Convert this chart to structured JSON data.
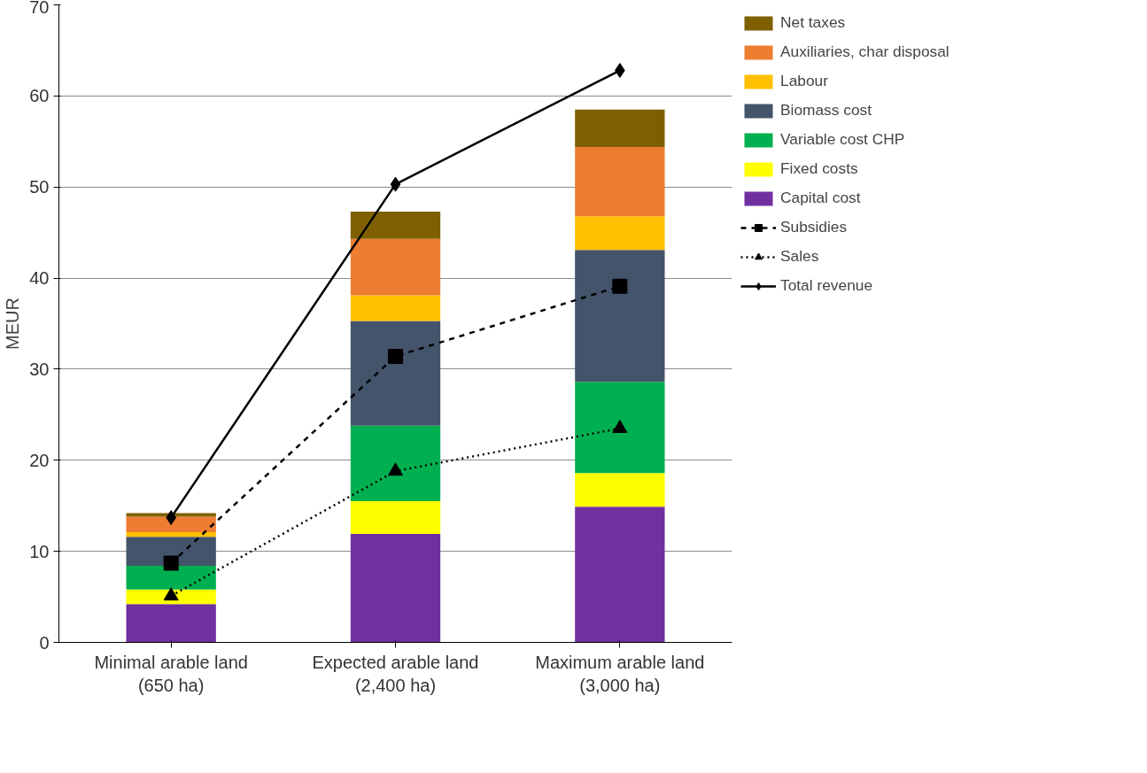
{
  "chart_data": {
    "type": "bar",
    "stacked": true,
    "ylabel": "MEUR",
    "categories": [
      "Minimal arable land (650 ha)",
      "Expected arable land (2,400 ha)",
      "Maximum arable land (3,000 ha)"
    ],
    "series": [
      {
        "name": "Capital cost",
        "color": "#7030a0",
        "values": [
          4.2,
          11.9,
          14.9
        ]
      },
      {
        "name": "Fixed costs",
        "color": "#ffff00",
        "values": [
          1.6,
          3.6,
          3.7
        ]
      },
      {
        "name": "Variable cost CHP",
        "color": "#00b050",
        "values": [
          2.6,
          8.3,
          10.0
        ]
      },
      {
        "name": "Biomass cost",
        "color": "#44546a",
        "values": [
          3.2,
          11.5,
          14.5
        ]
      },
      {
        "name": "Labour",
        "color": "#ffc000",
        "values": [
          0.5,
          2.8,
          3.7
        ]
      },
      {
        "name": "Auxiliaries, char disposal",
        "color": "#ed7d31",
        "values": [
          1.7,
          6.2,
          7.6
        ]
      },
      {
        "name": "Net taxes",
        "color": "#7f6000",
        "values": [
          0.4,
          3.0,
          4.1
        ]
      },
      {
        "name": "Subsidies",
        "type": "line",
        "color": "#000000",
        "marker": "square",
        "line_style": "dashed",
        "values": [
          8.7,
          31.4,
          39.1
        ]
      },
      {
        "name": "Sales",
        "type": "line",
        "color": "#000000",
        "marker": "triangle",
        "line_style": "dotted",
        "values": [
          5.1,
          18.8,
          23.5
        ]
      },
      {
        "name": "Total revenue",
        "type": "line",
        "color": "#000000",
        "marker": "diamond",
        "line_style": "solid",
        "values": [
          13.7,
          50.3,
          62.8
        ]
      }
    ],
    "ylim": [
      0,
      70
    ],
    "yticks": [
      0,
      10,
      20,
      30,
      40,
      50,
      60,
      70
    ],
    "grid": "y",
    "legend": "right"
  }
}
